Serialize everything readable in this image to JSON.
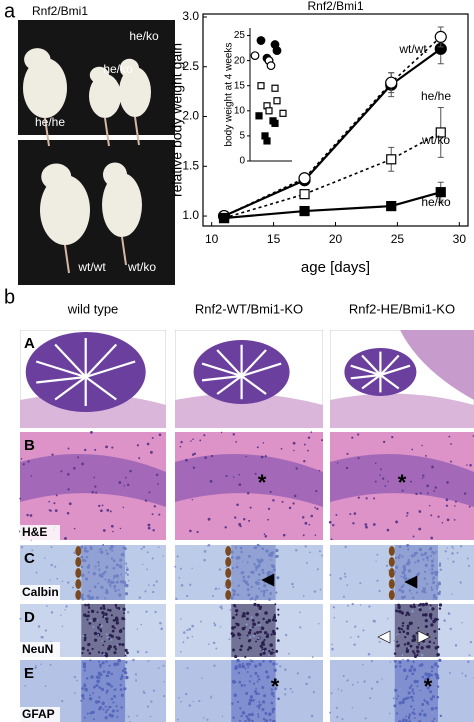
{
  "figure_labels": [
    "a",
    "b"
  ],
  "photos": {
    "title": "Rnf2/Bmi1",
    "top_labels": [
      "he/ko",
      "he/ko",
      "he/he"
    ],
    "bottom_labels": [
      "wt/wt",
      "wt/ko"
    ]
  },
  "chart_data": [
    {
      "type": "line",
      "title": "Rnf2/Bmi1",
      "xlabel": "age [days]",
      "ylabel": "relative body weight gain",
      "x": [
        11,
        17.5,
        24.5,
        28.5
      ],
      "xlim": [
        9.3,
        30.7
      ],
      "xticks": [
        10,
        15,
        20,
        25,
        30
      ],
      "ylim": [
        0.9,
        3.03
      ],
      "yticks": [
        {
          "value": 1,
          "label": "1.0"
        },
        {
          "value": 1.5,
          "label": "1.5"
        },
        {
          "value": 2,
          "label": "2.0"
        },
        {
          "value": 2.5,
          "label": "2.5"
        },
        {
          "value": 3,
          "label": "3.0"
        }
      ],
      "series": [
        {
          "name": "wt/wt",
          "color": "#000000",
          "marker": "circle",
          "filled": true,
          "line": "solid",
          "values": [
            1.0,
            1.36,
            2.32,
            2.68
          ],
          "errors": [
            0.02,
            0.03,
            0.12,
            0.15
          ]
        },
        {
          "name": "he/he",
          "color": "#000000",
          "marker": "circle",
          "filled": false,
          "line": "dotted",
          "values": [
            1.0,
            1.38,
            2.34,
            2.8
          ],
          "errors": [
            0.02,
            0.03,
            0.1,
            0.1
          ]
        },
        {
          "name": "wt/ko",
          "color": "#000000",
          "marker": "square",
          "filled": false,
          "line": "dotted",
          "values": [
            0.98,
            1.22,
            1.57,
            1.84
          ],
          "errors": [
            0.02,
            0.03,
            0.12,
            0.25
          ]
        },
        {
          "name": "he/ko",
          "color": "#000000",
          "marker": "square",
          "filled": true,
          "line": "solid",
          "values": [
            0.98,
            1.05,
            1.1,
            1.24
          ],
          "errors": [
            0.02,
            0.03,
            0.03,
            0.1
          ]
        }
      ]
    },
    {
      "type": "strip",
      "ylabel": "body weight at 4 weeks",
      "ylim": [
        0,
        26.5
      ],
      "yticks": [
        0,
        5,
        10,
        15,
        20,
        25
      ],
      "series": [
        {
          "marker": "circle",
          "filled": true,
          "color": "#000000",
          "values": [
            24,
            23.2,
            22,
            20.5,
            20
          ]
        },
        {
          "marker": "circle",
          "filled": false,
          "color": "#000000",
          "values": [
            21,
            20,
            19
          ]
        },
        {
          "marker": "square",
          "filled": false,
          "color": "#000000",
          "values": [
            15,
            14.5,
            12,
            11,
            10,
            9.5
          ]
        },
        {
          "marker": "square",
          "filled": true,
          "color": "#000000",
          "values": [
            9,
            8,
            7.5,
            5,
            4
          ]
        }
      ]
    }
  ],
  "histology": {
    "columns": [
      "wild type",
      "Rnf2-WT/Bmi1-KO",
      "Rnf2-HE/Bmi1-KO"
    ],
    "rows": [
      {
        "label": "A"
      },
      {
        "label": "B",
        "stain": "H&E"
      },
      {
        "label": "C",
        "stain": "Calbin"
      },
      {
        "label": "D",
        "stain": "NeuN"
      },
      {
        "label": "E",
        "stain": "GFAP"
      }
    ],
    "asterisks": [
      "*",
      "*",
      "*",
      "*"
    ]
  }
}
